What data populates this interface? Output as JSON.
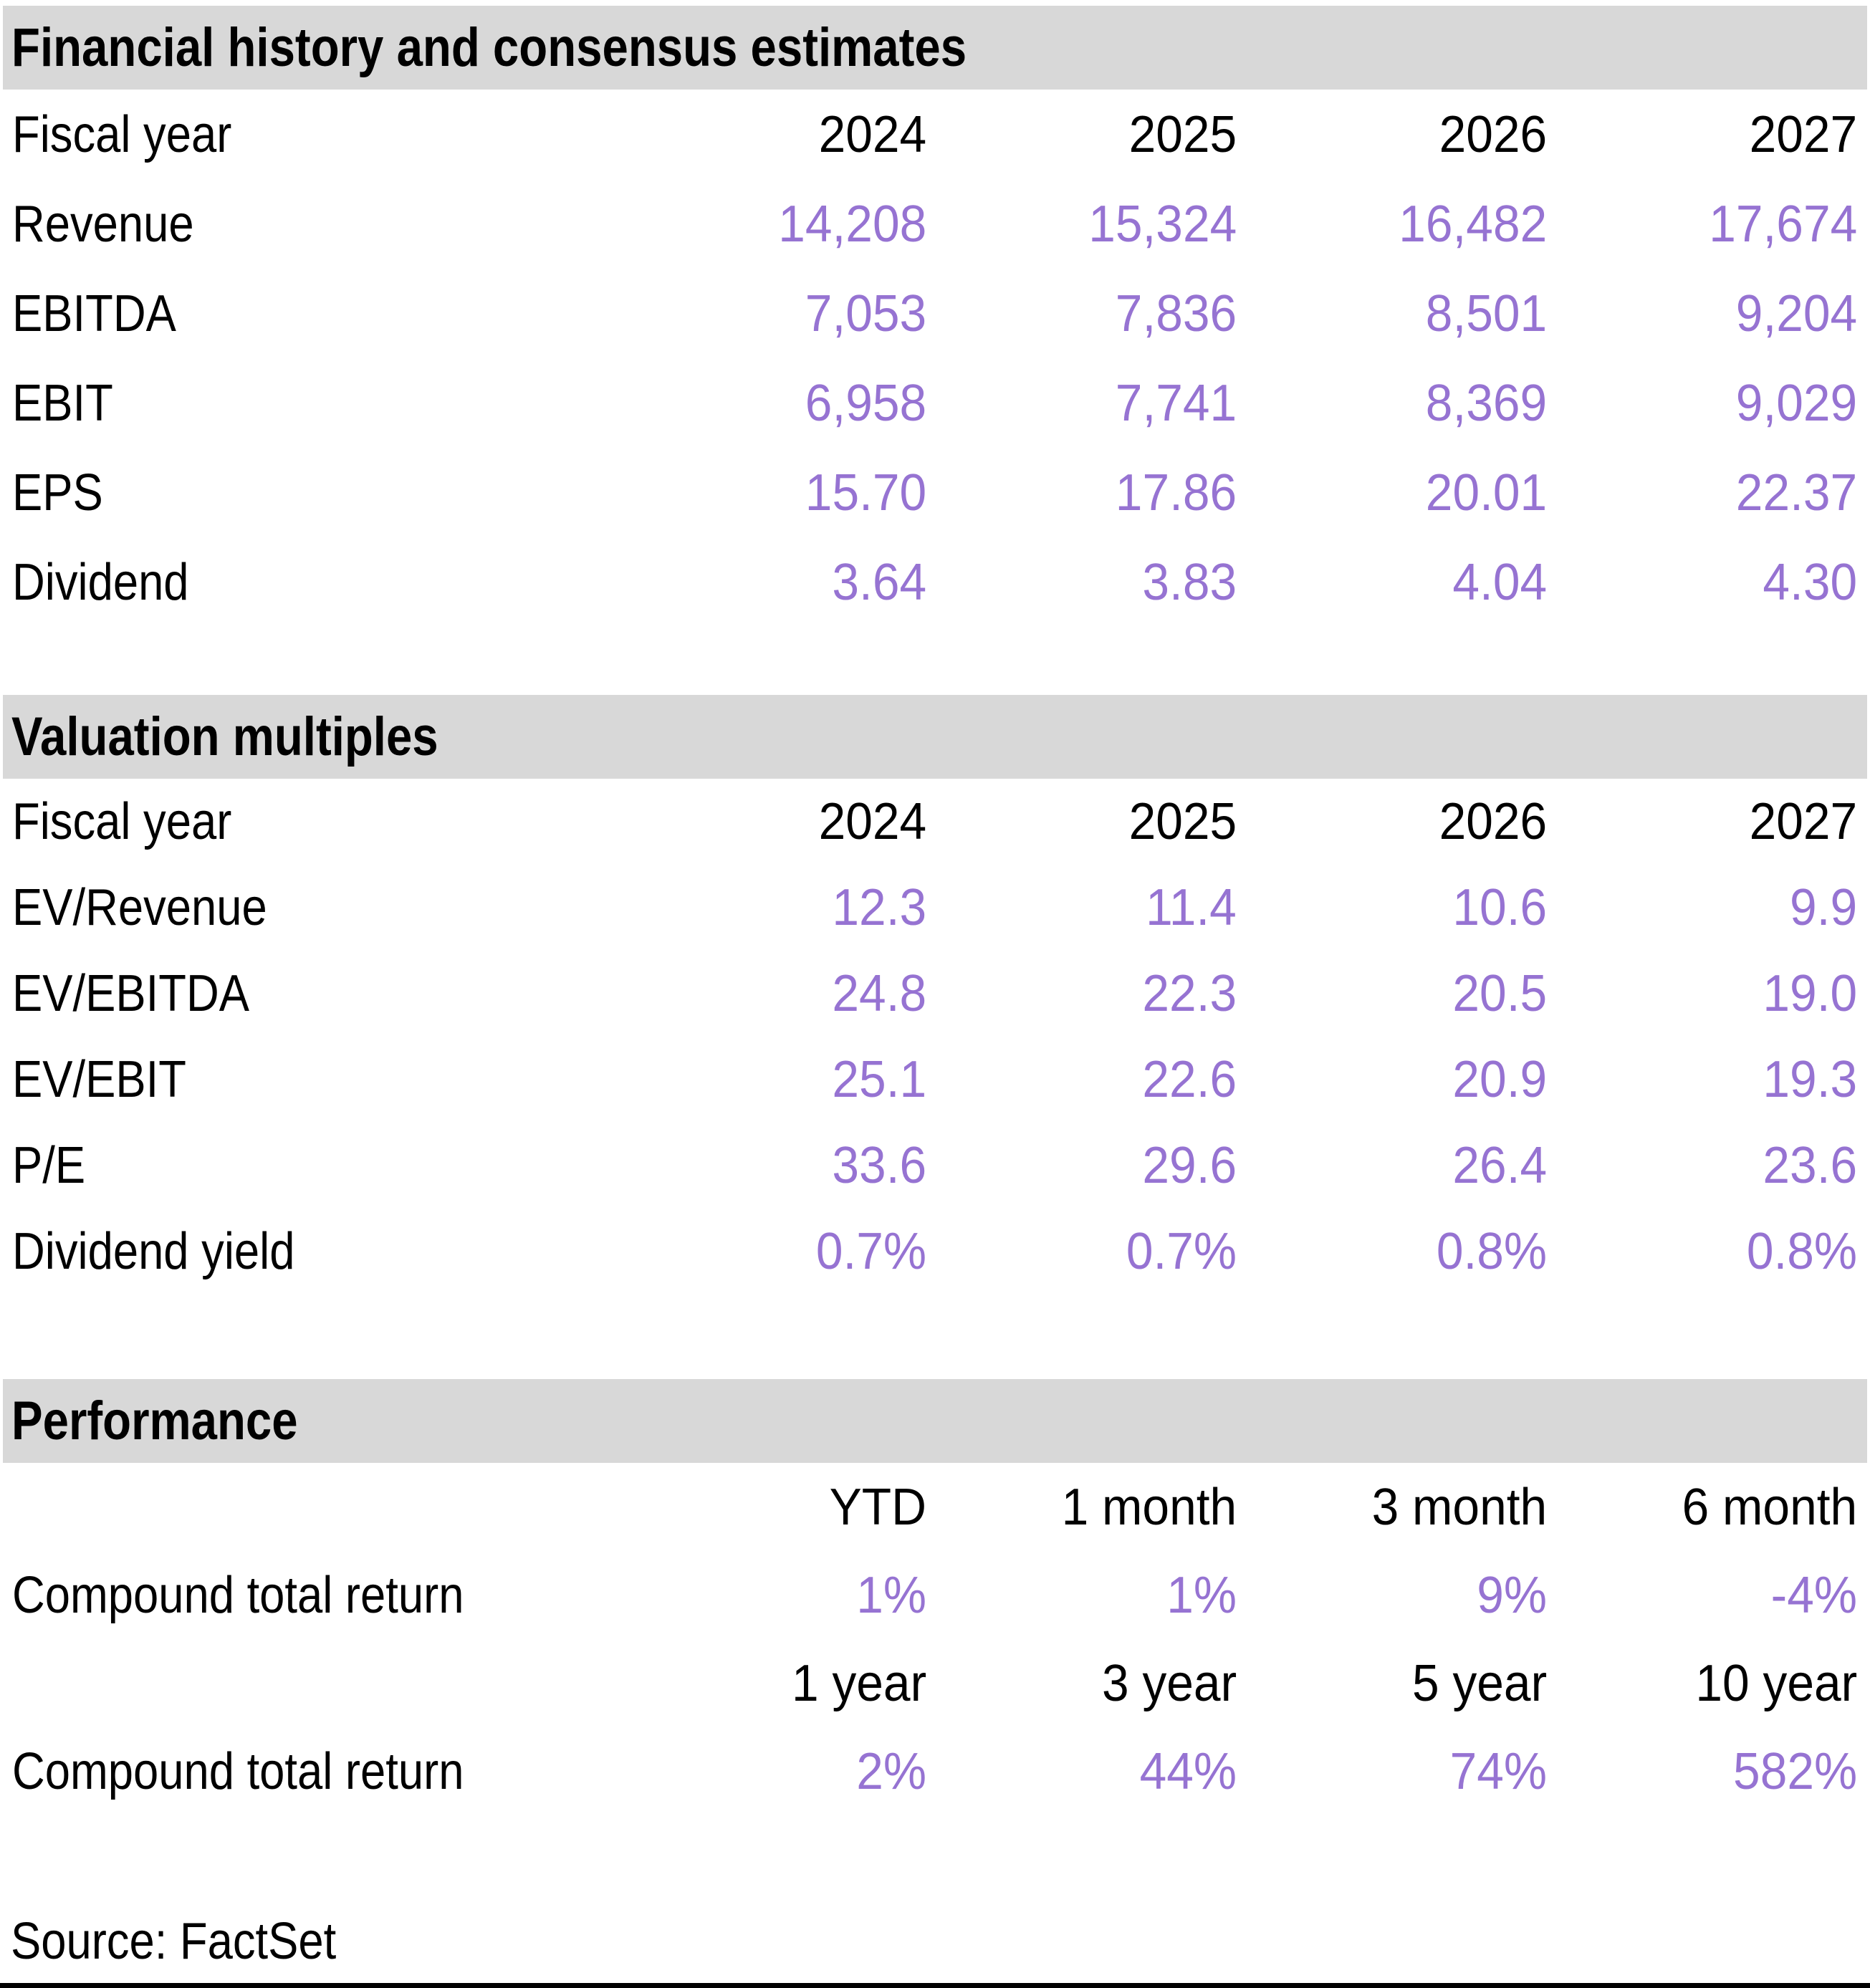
{
  "colors": {
    "accent_purple": "#9673d2",
    "header_band_gray": "#d8d8d8",
    "text_black": "#000000"
  },
  "sections": {
    "financial": {
      "title": "Financial history and consensus estimates",
      "header_label": "Fiscal year",
      "years": [
        "2024",
        "2025",
        "2026",
        "2027"
      ],
      "rows": [
        {
          "label": "Revenue",
          "values": [
            "14,208",
            "15,324",
            "16,482",
            "17,674"
          ]
        },
        {
          "label": "EBITDA",
          "values": [
            "7,053",
            "7,836",
            "8,501",
            "9,204"
          ]
        },
        {
          "label": "EBIT",
          "values": [
            "6,958",
            "7,741",
            "8,369",
            "9,029"
          ]
        },
        {
          "label": "EPS",
          "values": [
            "15.70",
            "17.86",
            "20.01",
            "22.37"
          ]
        },
        {
          "label": "Dividend",
          "values": [
            "3.64",
            "3.83",
            "4.04",
            "4.30"
          ]
        }
      ]
    },
    "valuation": {
      "title": "Valuation multiples",
      "header_label": "Fiscal year",
      "years": [
        "2024",
        "2025",
        "2026",
        "2027"
      ],
      "rows": [
        {
          "label": "EV/Revenue",
          "values": [
            "12.3",
            "11.4",
            "10.6",
            "9.9"
          ]
        },
        {
          "label": "EV/EBITDA",
          "values": [
            "24.8",
            "22.3",
            "20.5",
            "19.0"
          ]
        },
        {
          "label": "EV/EBIT",
          "values": [
            "25.1",
            "22.6",
            "20.9",
            "19.3"
          ]
        },
        {
          "label": "P/E",
          "values": [
            "33.6",
            "29.6",
            "26.4",
            "23.6"
          ]
        },
        {
          "label": "Dividend yield",
          "values": [
            "0.7%",
            "0.7%",
            "0.8%",
            "0.8%"
          ]
        }
      ]
    },
    "performance": {
      "title": "Performance",
      "groups": [
        {
          "periods": [
            "YTD",
            "1 month",
            "3 month",
            "6 month"
          ],
          "row_label": "Compound total return",
          "values": [
            "1%",
            "1%",
            "9%",
            "-4%"
          ]
        },
        {
          "periods": [
            "1 year",
            "3 year",
            "5 year",
            "10 year"
          ],
          "row_label": "Compound total return",
          "values": [
            "2%",
            "44%",
            "74%",
            "582%"
          ]
        }
      ]
    }
  },
  "footer": {
    "source": "Source: FactSet"
  }
}
